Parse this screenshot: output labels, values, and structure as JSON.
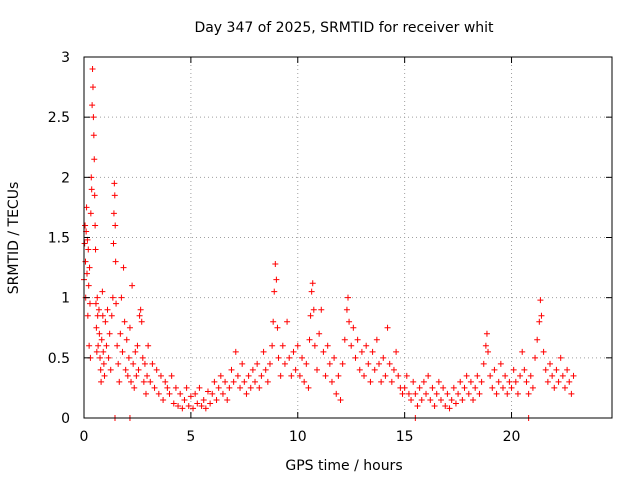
{
  "chart_data": {
    "type": "scatter",
    "title": "Day 347 of 2025, SRMTID for receiver whit",
    "xlabel": "GPS time / hours",
    "ylabel": "SRMTID / TECUs",
    "xlim": [
      0,
      24.7
    ],
    "ylim": [
      0,
      3
    ],
    "xticks": [
      0,
      5,
      10,
      15,
      20
    ],
    "yticks": [
      0,
      0.5,
      1,
      1.5,
      2,
      2.5,
      3
    ],
    "xtick_labels": [
      "0",
      "5",
      "10",
      "15",
      "20"
    ],
    "ytick_labels": [
      "0",
      "0.5",
      "1",
      "1.5",
      "2",
      "2.5",
      "3"
    ],
    "grid": true,
    "marker": "+",
    "color": "#ff0000",
    "series": [
      {
        "name": "SRMTID",
        "points": [
          [
            0.0,
            1.15
          ],
          [
            0.03,
            1.45
          ],
          [
            0.05,
            1.6
          ],
          [
            0.07,
            1.3
          ],
          [
            0.08,
            1.0
          ],
          [
            0.1,
            1.55
          ],
          [
            0.12,
            1.75
          ],
          [
            0.14,
            1.2
          ],
          [
            0.16,
            1.48
          ],
          [
            0.18,
            0.85
          ],
          [
            0.2,
            1.4
          ],
          [
            0.22,
            1.1
          ],
          [
            0.24,
            0.6
          ],
          [
            0.26,
            1.25
          ],
          [
            0.28,
            0.95
          ],
          [
            0.3,
            0.5
          ],
          [
            0.32,
            1.7
          ],
          [
            0.34,
            2.0
          ],
          [
            0.36,
            1.9
          ],
          [
            0.38,
            2.6
          ],
          [
            0.4,
            2.9
          ],
          [
            0.42,
            2.75
          ],
          [
            0.44,
            2.5
          ],
          [
            0.46,
            2.35
          ],
          [
            0.48,
            2.15
          ],
          [
            0.5,
            1.85
          ],
          [
            0.52,
            1.6
          ],
          [
            0.54,
            1.4
          ],
          [
            0.56,
            0.95
          ],
          [
            0.58,
            0.75
          ],
          [
            0.6,
            0.55
          ],
          [
            0.62,
            1.0
          ],
          [
            0.64,
            0.85
          ],
          [
            0.66,
            0.6
          ],
          [
            0.7,
            0.9
          ],
          [
            0.72,
            0.7
          ],
          [
            0.75,
            0.5
          ],
          [
            0.78,
            0.4
          ],
          [
            0.8,
            0.3
          ],
          [
            0.83,
            0.65
          ],
          [
            0.86,
            1.05
          ],
          [
            0.88,
            0.85
          ],
          [
            0.9,
            0.55
          ],
          [
            0.93,
            0.45
          ],
          [
            0.96,
            0.35
          ],
          [
            1.0,
            0.8
          ],
          [
            1.05,
            0.6
          ],
          [
            1.1,
            0.9
          ],
          [
            1.15,
            0.5
          ],
          [
            1.2,
            0.7
          ],
          [
            1.25,
            0.4
          ],
          [
            1.3,
            0.85
          ],
          [
            1.35,
            1.0
          ],
          [
            1.38,
            1.45
          ],
          [
            1.4,
            1.7
          ],
          [
            1.42,
            1.95
          ],
          [
            1.44,
            1.85
          ],
          [
            1.46,
            1.6
          ],
          [
            1.48,
            1.3
          ],
          [
            1.5,
            0.95
          ],
          [
            1.55,
            0.6
          ],
          [
            1.6,
            0.45
          ],
          [
            1.65,
            0.3
          ],
          [
            1.7,
            0.7
          ],
          [
            1.75,
            1.0
          ],
          [
            1.8,
            0.55
          ],
          [
            1.85,
            1.25
          ],
          [
            1.9,
            0.8
          ],
          [
            1.95,
            0.4
          ],
          [
            2.0,
            0.65
          ],
          [
            2.05,
            0.35
          ],
          [
            2.1,
            0.5
          ],
          [
            2.15,
            0.75
          ],
          [
            2.2,
            0.3
          ],
          [
            2.25,
            1.1
          ],
          [
            2.3,
            0.45
          ],
          [
            2.35,
            0.25
          ],
          [
            2.4,
            0.55
          ],
          [
            2.45,
            0.35
          ],
          [
            2.5,
            0.6
          ],
          [
            2.55,
            0.4
          ],
          [
            2.6,
            0.85
          ],
          [
            2.65,
            0.9
          ],
          [
            2.7,
            0.8
          ],
          [
            2.75,
            0.5
          ],
          [
            2.8,
            0.3
          ],
          [
            2.85,
            0.45
          ],
          [
            2.9,
            0.2
          ],
          [
            2.95,
            0.35
          ],
          [
            3.0,
            0.6
          ],
          [
            3.1,
            0.3
          ],
          [
            3.2,
            0.45
          ],
          [
            3.3,
            0.25
          ],
          [
            3.4,
            0.4
          ],
          [
            3.5,
            0.2
          ],
          [
            3.6,
            0.35
          ],
          [
            3.7,
            0.15
          ],
          [
            3.8,
            0.3
          ],
          [
            3.9,
            0.25
          ],
          [
            4.0,
            0.2
          ],
          [
            4.1,
            0.35
          ],
          [
            4.2,
            0.12
          ],
          [
            4.3,
            0.25
          ],
          [
            4.4,
            0.1
          ],
          [
            4.5,
            0.2
          ],
          [
            4.6,
            0.08
          ],
          [
            4.7,
            0.15
          ],
          [
            4.8,
            0.25
          ],
          [
            4.9,
            0.1
          ],
          [
            5.0,
            0.18
          ],
          [
            5.1,
            0.08
          ],
          [
            5.2,
            0.2
          ],
          [
            5.3,
            0.12
          ],
          [
            5.4,
            0.25
          ],
          [
            5.5,
            0.1
          ],
          [
            5.6,
            0.15
          ],
          [
            5.7,
            0.08
          ],
          [
            5.8,
            0.22
          ],
          [
            5.9,
            0.12
          ],
          [
            6.0,
            0.2
          ],
          [
            6.1,
            0.3
          ],
          [
            6.2,
            0.15
          ],
          [
            6.3,
            0.25
          ],
          [
            6.4,
            0.35
          ],
          [
            6.5,
            0.2
          ],
          [
            6.6,
            0.3
          ],
          [
            6.7,
            0.15
          ],
          [
            6.8,
            0.25
          ],
          [
            6.9,
            0.4
          ],
          [
            7.0,
            0.3
          ],
          [
            7.1,
            0.55
          ],
          [
            7.2,
            0.35
          ],
          [
            7.3,
            0.25
          ],
          [
            7.4,
            0.45
          ],
          [
            7.5,
            0.3
          ],
          [
            7.6,
            0.2
          ],
          [
            7.7,
            0.35
          ],
          [
            7.8,
            0.25
          ],
          [
            7.9,
            0.4
          ],
          [
            8.0,
            0.3
          ],
          [
            8.1,
            0.45
          ],
          [
            8.2,
            0.25
          ],
          [
            8.3,
            0.35
          ],
          [
            8.4,
            0.55
          ],
          [
            8.5,
            0.4
          ],
          [
            8.6,
            0.3
          ],
          [
            8.7,
            0.45
          ],
          [
            8.8,
            0.6
          ],
          [
            8.85,
            0.8
          ],
          [
            8.9,
            1.05
          ],
          [
            8.95,
            1.28
          ],
          [
            9.0,
            1.15
          ],
          [
            9.05,
            0.75
          ],
          [
            9.1,
            0.5
          ],
          [
            9.2,
            0.35
          ],
          [
            9.3,
            0.6
          ],
          [
            9.4,
            0.45
          ],
          [
            9.5,
            0.8
          ],
          [
            9.6,
            0.5
          ],
          [
            9.7,
            0.35
          ],
          [
            9.8,
            0.55
          ],
          [
            9.9,
            0.4
          ],
          [
            10.0,
            0.6
          ],
          [
            10.1,
            0.35
          ],
          [
            10.2,
            0.5
          ],
          [
            10.3,
            0.3
          ],
          [
            10.4,
            0.45
          ],
          [
            10.5,
            0.25
          ],
          [
            10.55,
            0.65
          ],
          [
            10.6,
            0.85
          ],
          [
            10.65,
            1.05
          ],
          [
            10.7,
            1.12
          ],
          [
            10.75,
            0.9
          ],
          [
            10.8,
            0.6
          ],
          [
            10.9,
            0.4
          ],
          [
            11.0,
            0.7
          ],
          [
            11.1,
            0.9
          ],
          [
            11.2,
            0.55
          ],
          [
            11.3,
            0.35
          ],
          [
            11.4,
            0.6
          ],
          [
            11.5,
            0.45
          ],
          [
            11.6,
            0.3
          ],
          [
            11.7,
            0.5
          ],
          [
            11.8,
            0.2
          ],
          [
            11.9,
            0.35
          ],
          [
            12.0,
            0.15
          ],
          [
            12.1,
            0.45
          ],
          [
            12.2,
            0.65
          ],
          [
            12.3,
            0.9
          ],
          [
            12.35,
            1.0
          ],
          [
            12.4,
            0.8
          ],
          [
            12.5,
            0.6
          ],
          [
            12.6,
            0.75
          ],
          [
            12.7,
            0.5
          ],
          [
            12.8,
            0.65
          ],
          [
            12.9,
            0.4
          ],
          [
            13.0,
            0.55
          ],
          [
            13.1,
            0.35
          ],
          [
            13.2,
            0.6
          ],
          [
            13.3,
            0.45
          ],
          [
            13.4,
            0.3
          ],
          [
            13.5,
            0.55
          ],
          [
            13.6,
            0.4
          ],
          [
            13.7,
            0.65
          ],
          [
            13.8,
            0.45
          ],
          [
            13.9,
            0.3
          ],
          [
            14.0,
            0.5
          ],
          [
            14.1,
            0.35
          ],
          [
            14.2,
            0.75
          ],
          [
            14.3,
            0.45
          ],
          [
            14.4,
            0.3
          ],
          [
            14.5,
            0.4
          ],
          [
            14.6,
            0.55
          ],
          [
            14.7,
            0.35
          ],
          [
            14.8,
            0.25
          ],
          [
            14.9,
            0.2
          ],
          [
            15.0,
            0.25
          ],
          [
            15.1,
            0.35
          ],
          [
            15.2,
            0.2
          ],
          [
            15.3,
            0.15
          ],
          [
            15.4,
            0.3
          ],
          [
            15.5,
            0.2
          ],
          [
            15.6,
            0.1
          ],
          [
            15.7,
            0.25
          ],
          [
            15.8,
            0.15
          ],
          [
            15.9,
            0.3
          ],
          [
            16.0,
            0.2
          ],
          [
            16.1,
            0.35
          ],
          [
            16.2,
            0.15
          ],
          [
            16.3,
            0.25
          ],
          [
            16.4,
            0.1
          ],
          [
            16.5,
            0.2
          ],
          [
            16.6,
            0.3
          ],
          [
            16.7,
            0.15
          ],
          [
            16.8,
            0.25
          ],
          [
            16.9,
            0.1
          ],
          [
            17.0,
            0.2
          ],
          [
            17.1,
            0.08
          ],
          [
            17.2,
            0.15
          ],
          [
            17.3,
            0.25
          ],
          [
            17.4,
            0.12
          ],
          [
            17.5,
            0.2
          ],
          [
            17.6,
            0.3
          ],
          [
            17.7,
            0.15
          ],
          [
            17.8,
            0.25
          ],
          [
            17.9,
            0.35
          ],
          [
            18.0,
            0.2
          ],
          [
            18.1,
            0.3
          ],
          [
            18.2,
            0.15
          ],
          [
            18.3,
            0.25
          ],
          [
            18.4,
            0.35
          ],
          [
            18.5,
            0.2
          ],
          [
            18.6,
            0.3
          ],
          [
            18.7,
            0.45
          ],
          [
            18.8,
            0.6
          ],
          [
            18.85,
            0.7
          ],
          [
            18.9,
            0.55
          ],
          [
            19.0,
            0.35
          ],
          [
            19.1,
            0.25
          ],
          [
            19.2,
            0.4
          ],
          [
            19.3,
            0.2
          ],
          [
            19.4,
            0.3
          ],
          [
            19.5,
            0.45
          ],
          [
            19.6,
            0.25
          ],
          [
            19.7,
            0.35
          ],
          [
            19.8,
            0.2
          ],
          [
            19.9,
            0.3
          ],
          [
            20.0,
            0.25
          ],
          [
            20.1,
            0.4
          ],
          [
            20.2,
            0.3
          ],
          [
            20.3,
            0.2
          ],
          [
            20.4,
            0.35
          ],
          [
            20.5,
            0.55
          ],
          [
            20.6,
            0.4
          ],
          [
            20.7,
            0.3
          ],
          [
            20.8,
            0.2
          ],
          [
            20.9,
            0.35
          ],
          [
            21.0,
            0.25
          ],
          [
            21.1,
            0.5
          ],
          [
            21.2,
            0.65
          ],
          [
            21.3,
            0.8
          ],
          [
            21.35,
            0.98
          ],
          [
            21.4,
            0.85
          ],
          [
            21.5,
            0.55
          ],
          [
            21.6,
            0.4
          ],
          [
            21.7,
            0.3
          ],
          [
            21.8,
            0.45
          ],
          [
            21.9,
            0.35
          ],
          [
            22.0,
            0.25
          ],
          [
            22.1,
            0.4
          ],
          [
            22.2,
            0.3
          ],
          [
            22.3,
            0.5
          ],
          [
            22.4,
            0.35
          ],
          [
            22.5,
            0.25
          ],
          [
            22.6,
            0.4
          ],
          [
            22.7,
            0.3
          ],
          [
            22.8,
            0.2
          ],
          [
            22.9,
            0.35
          ],
          [
            1.45,
            0.0
          ],
          [
            2.15,
            0.0
          ],
          [
            15.5,
            0.0
          ],
          [
            20.8,
            0.0
          ]
        ]
      }
    ]
  }
}
